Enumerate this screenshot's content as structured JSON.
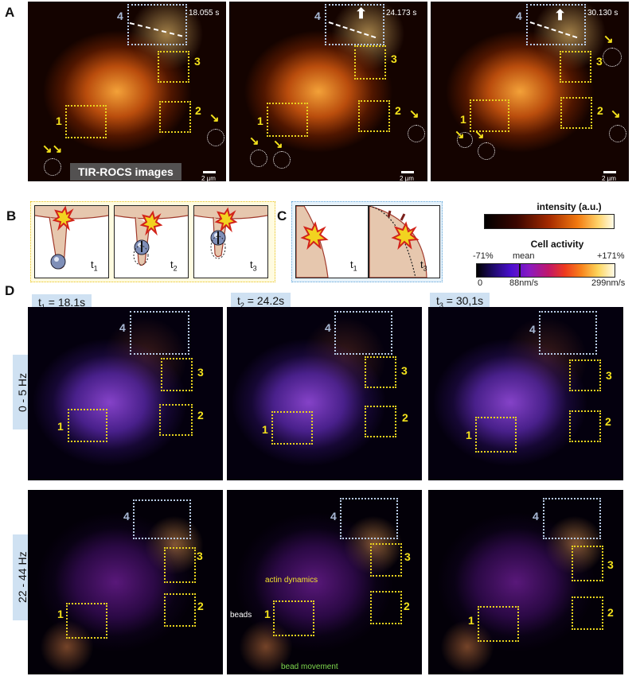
{
  "panels": {
    "a": "A",
    "b": "B",
    "c": "C",
    "d": "D"
  },
  "panel_a": {
    "timestamps": [
      "18.055 s",
      "24.173 s",
      "30.130 s"
    ],
    "box_numbers": {
      "one": "1",
      "two": "2",
      "three": "3",
      "four": "4"
    },
    "label": "TIR-ROCS images",
    "scale_bar": "2 µm"
  },
  "panel_b": {
    "t1": "t",
    "t1_sub": "1",
    "t2": "t",
    "t2_sub": "2",
    "t3": "t",
    "t3_sub": "3"
  },
  "panel_c": {
    "t1": "t",
    "t1_sub": "1",
    "t3": "t",
    "t3_sub": "3"
  },
  "intensity_bar": {
    "title": "intensity (a.u.)"
  },
  "activity_bar": {
    "title": "Cell activity",
    "top_left": "-71%",
    "top_mid": "mean",
    "top_right": "+171%",
    "bot_left": "0",
    "bot_mid": "88nm/s",
    "bot_right": "299nm/s"
  },
  "panel_d": {
    "col_tags": [
      {
        "t": "t",
        "sub": "1",
        "val": " = 18.1s"
      },
      {
        "t": "t",
        "sub": "2",
        "val": " = 24.2s"
      },
      {
        "t": "t",
        "sub": "3",
        "val": " = 30,1s"
      }
    ],
    "row_tags": [
      "0 - 5 Hz",
      "22 - 44 Hz"
    ],
    "annotations": {
      "actin": "actin dynamics",
      "beads": "beads",
      "bead_move": "bead movement"
    }
  },
  "colors": {
    "box_yellow": "#e8d21e",
    "box_blue": "#b8cbe6",
    "tag_bg": "#cfe1f2"
  }
}
